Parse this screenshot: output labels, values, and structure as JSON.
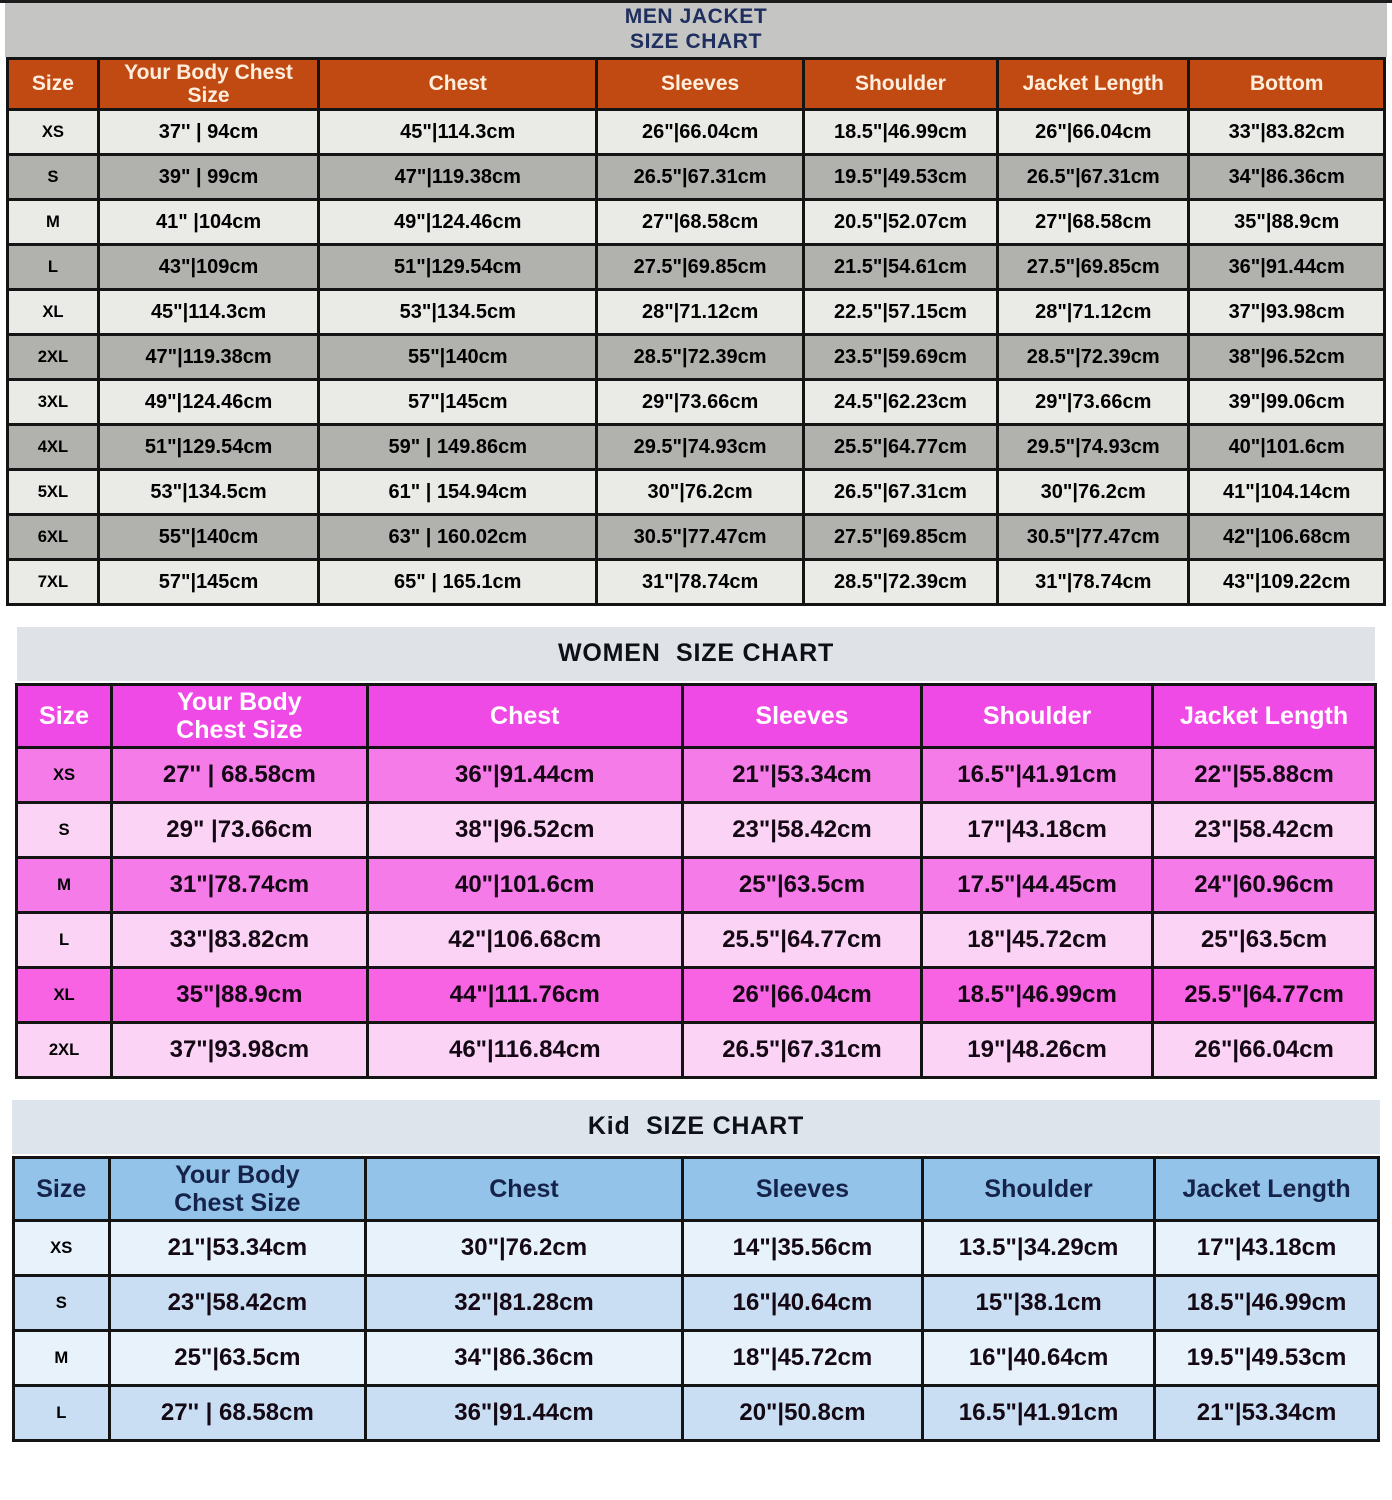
{
  "page_title": "Jacket Size Charts",
  "chart_data": [
    {
      "id": "men",
      "type": "table",
      "title_lines": [
        "MEN JACKET",
        "SIZE CHART"
      ],
      "columns": [
        "Size",
        "Your Body Chest Size",
        "Chest",
        "Sleeves",
        "Shoulder",
        "Jacket Length",
        "Bottom"
      ],
      "rows": [
        {
          "size": "XS",
          "shade": "light",
          "cells": [
            "37'' | 94cm",
            "45\"|114.3cm",
            "26\"|66.04cm",
            "18.5\"|46.99cm",
            "26\"|66.04cm",
            "33\"|83.82cm"
          ]
        },
        {
          "size": "S",
          "shade": "dark",
          "cells": [
            "39\" | 99cm",
            "47\"|119.38cm",
            "26.5\"|67.31cm",
            "19.5\"|49.53cm",
            "26.5\"|67.31cm",
            "34\"|86.36cm"
          ]
        },
        {
          "size": "M",
          "shade": "light",
          "cells": [
            "41\" |104cm",
            "49\"|124.46cm",
            "27\"|68.58cm",
            "20.5\"|52.07cm",
            "27\"|68.58cm",
            "35\"|88.9cm"
          ]
        },
        {
          "size": "L",
          "shade": "dark",
          "cells": [
            "43\"|109cm",
            "51\"|129.54cm",
            "27.5\"|69.85cm",
            "21.5\"|54.61cm",
            "27.5\"|69.85cm",
            "36\"|91.44cm"
          ]
        },
        {
          "size": "XL",
          "shade": "light",
          "cells": [
            "45\"|114.3cm",
            "53\"|134.5cm",
            "28\"|71.12cm",
            "22.5\"|57.15cm",
            "28\"|71.12cm",
            "37\"|93.98cm"
          ]
        },
        {
          "size": "2XL",
          "shade": "dark",
          "cells": [
            "47\"|119.38cm",
            "55\"|140cm",
            "28.5\"|72.39cm",
            "23.5\"|59.69cm",
            "28.5\"|72.39cm",
            "38\"|96.52cm"
          ]
        },
        {
          "size": "3XL",
          "shade": "light",
          "cells": [
            "49\"|124.46cm",
            "57\"|145cm",
            "29\"|73.66cm",
            "24.5\"|62.23cm",
            "29\"|73.66cm",
            "39\"|99.06cm"
          ]
        },
        {
          "size": "4XL",
          "shade": "dark",
          "cells": [
            "51\"|129.54cm",
            "59\" | 149.86cm",
            "29.5\"|74.93cm",
            "25.5\"|64.77cm",
            "29.5\"|74.93cm",
            "40\"|101.6cm"
          ]
        },
        {
          "size": "5XL",
          "shade": "light",
          "cells": [
            "53\"|134.5cm",
            "61\" | 154.94cm",
            "30\"|76.2cm",
            "26.5\"|67.31cm",
            "30\"|76.2cm",
            "41\"|104.14cm"
          ]
        },
        {
          "size": "6XL",
          "shade": "dark",
          "cells": [
            "55\"|140cm",
            "63\" | 160.02cm",
            "30.5\"|77.47cm",
            "27.5\"|69.85cm",
            "30.5\"|77.47cm",
            "42\"|106.68cm"
          ]
        },
        {
          "size": "7XL",
          "shade": "light",
          "cells": [
            "57\"|145cm",
            "65\" | 165.1cm",
            "31\"|78.74cm",
            "28.5\"|72.39cm",
            "31\"|78.74cm",
            "43\"|109.22cm"
          ]
        }
      ],
      "colors": {
        "title_bg": "#c5c5c3",
        "title_text": "#1d2e5f",
        "header_bg": "#c04a12",
        "header_text": "#ffeedd",
        "row_light": "#eaebe7",
        "row_dark": "#b1b2ae",
        "row_vivid": "#b1b2ae"
      }
    },
    {
      "id": "women",
      "type": "table",
      "title_lines": [
        "WOMEN  SIZE CHART"
      ],
      "columns": [
        "Size",
        "Your Body Chest Size",
        "Chest",
        "Sleeves",
        "Shoulder",
        "Jacket Length"
      ],
      "rows": [
        {
          "size": "XS",
          "shade": "dark",
          "cells": [
            "27'' | 68.58cm",
            "36\"|91.44cm",
            "21\"|53.34cm",
            "16.5\"|41.91cm",
            "22\"|55.88cm"
          ]
        },
        {
          "size": "S",
          "shade": "light",
          "cells": [
            "29\" |73.66cm",
            "38\"|96.52cm",
            "23\"|58.42cm",
            "17\"|43.18cm",
            "23\"|58.42cm"
          ]
        },
        {
          "size": "M",
          "shade": "dark",
          "cells": [
            "31\"|78.74cm",
            "40\"|101.6cm",
            "25\"|63.5cm",
            "17.5\"|44.45cm",
            "24\"|60.96cm"
          ]
        },
        {
          "size": "L",
          "shade": "light",
          "cells": [
            "33\"|83.82cm",
            "42\"|106.68cm",
            "25.5\"|64.77cm",
            "18\"|45.72cm",
            "25\"|63.5cm"
          ]
        },
        {
          "size": "XL",
          "shade": "vivid",
          "cells": [
            "35\"|88.9cm",
            "44\"|111.76cm",
            "26\"|66.04cm",
            "18.5\"|46.99cm",
            "25.5\"|64.77cm"
          ]
        },
        {
          "size": "2XL",
          "shade": "light",
          "cells": [
            "37\"|93.98cm",
            "46\"|116.84cm",
            "26.5\"|67.31cm",
            "19\"|48.26cm",
            "26\"|66.04cm"
          ]
        }
      ],
      "colors": {
        "title_bg": "#dfe3e8",
        "title_text": "#0d1016",
        "header_bg": "#ef49e6",
        "header_text": "#ffffff",
        "row_light": "#fbd4f5",
        "row_dark": "#f57ce8",
        "row_vivid": "#f863e3"
      }
    },
    {
      "id": "kid",
      "type": "table",
      "title_lines": [
        "Kid  SIZE CHART"
      ],
      "columns": [
        "Size",
        "Your Body Chest Size",
        "Chest",
        "Sleeves",
        "Shoulder",
        "Jacket Length"
      ],
      "rows": [
        {
          "size": "XS",
          "shade": "light",
          "cells": [
            "21\"|53.34cm",
            "30\"|76.2cm",
            "14\"|35.56cm",
            "13.5\"|34.29cm",
            "17\"|43.18cm"
          ]
        },
        {
          "size": "S",
          "shade": "dark",
          "cells": [
            "23\"|58.42cm",
            "32\"|81.28cm",
            "16\"|40.64cm",
            "15\"|38.1cm",
            "18.5\"|46.99cm"
          ]
        },
        {
          "size": "M",
          "shade": "light",
          "cells": [
            "25\"|63.5cm",
            "34\"|86.36cm",
            "18\"|45.72cm",
            "16\"|40.64cm",
            "19.5\"|49.53cm"
          ]
        },
        {
          "size": "L",
          "shade": "dark",
          "cells": [
            "27'' | 68.58cm",
            "36\"|91.44cm",
            "20\"|50.8cm",
            "16.5\"|41.91cm",
            "21\"|53.34cm"
          ]
        }
      ],
      "colors": {
        "title_bg": "#dde4eb",
        "title_text": "#0d1016",
        "header_bg": "#93c3e9",
        "header_text": "#15234a",
        "row_light": "#e8f2fb",
        "row_dark": "#c9def2",
        "row_vivid": "#c9def2"
      }
    }
  ]
}
